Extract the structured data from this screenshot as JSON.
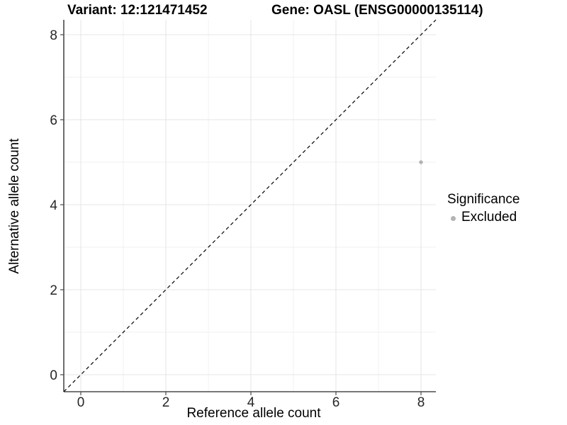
{
  "titles": {
    "variant": "Variant: 12:121471452",
    "gene": "Gene: OASL (ENSG00000135114)"
  },
  "axes": {
    "x_label": "Reference allele count",
    "y_label": "Alternative allele count"
  },
  "legend": {
    "title": "Significance",
    "items": [
      {
        "label": "Excluded",
        "color": "#b3b3b3"
      }
    ]
  },
  "chart_data": {
    "type": "scatter",
    "title": "Variant: 12:121471452 — Gene: OASL (ENSG00000135114)",
    "xlabel": "Reference allele count",
    "ylabel": "Alternative allele count",
    "xlim": [
      -0.4,
      8.35
    ],
    "ylim": [
      -0.4,
      8.35
    ],
    "x_ticks": [
      0,
      2,
      4,
      6,
      8
    ],
    "y_ticks": [
      0,
      2,
      4,
      6,
      8
    ],
    "minor_gridlines": [
      1,
      3,
      5,
      7
    ],
    "grid": true,
    "legend_position": "right",
    "series": [
      {
        "name": "Excluded",
        "color": "#b3b3b3",
        "points": [
          {
            "x": 8,
            "y": 5
          }
        ]
      }
    ],
    "reference_line": {
      "type": "identity",
      "style": "dashed",
      "color": "#000000"
    }
  },
  "style": {
    "background": "#ffffff",
    "axis_line_color": "#4a4a4a",
    "grid_major_color": "#e4e4e4",
    "grid_minor_color": "#f0f0f0",
    "tick_label_color": "#262626",
    "dashed_line_color": "#000000",
    "point_color": "#b3b3b3"
  }
}
